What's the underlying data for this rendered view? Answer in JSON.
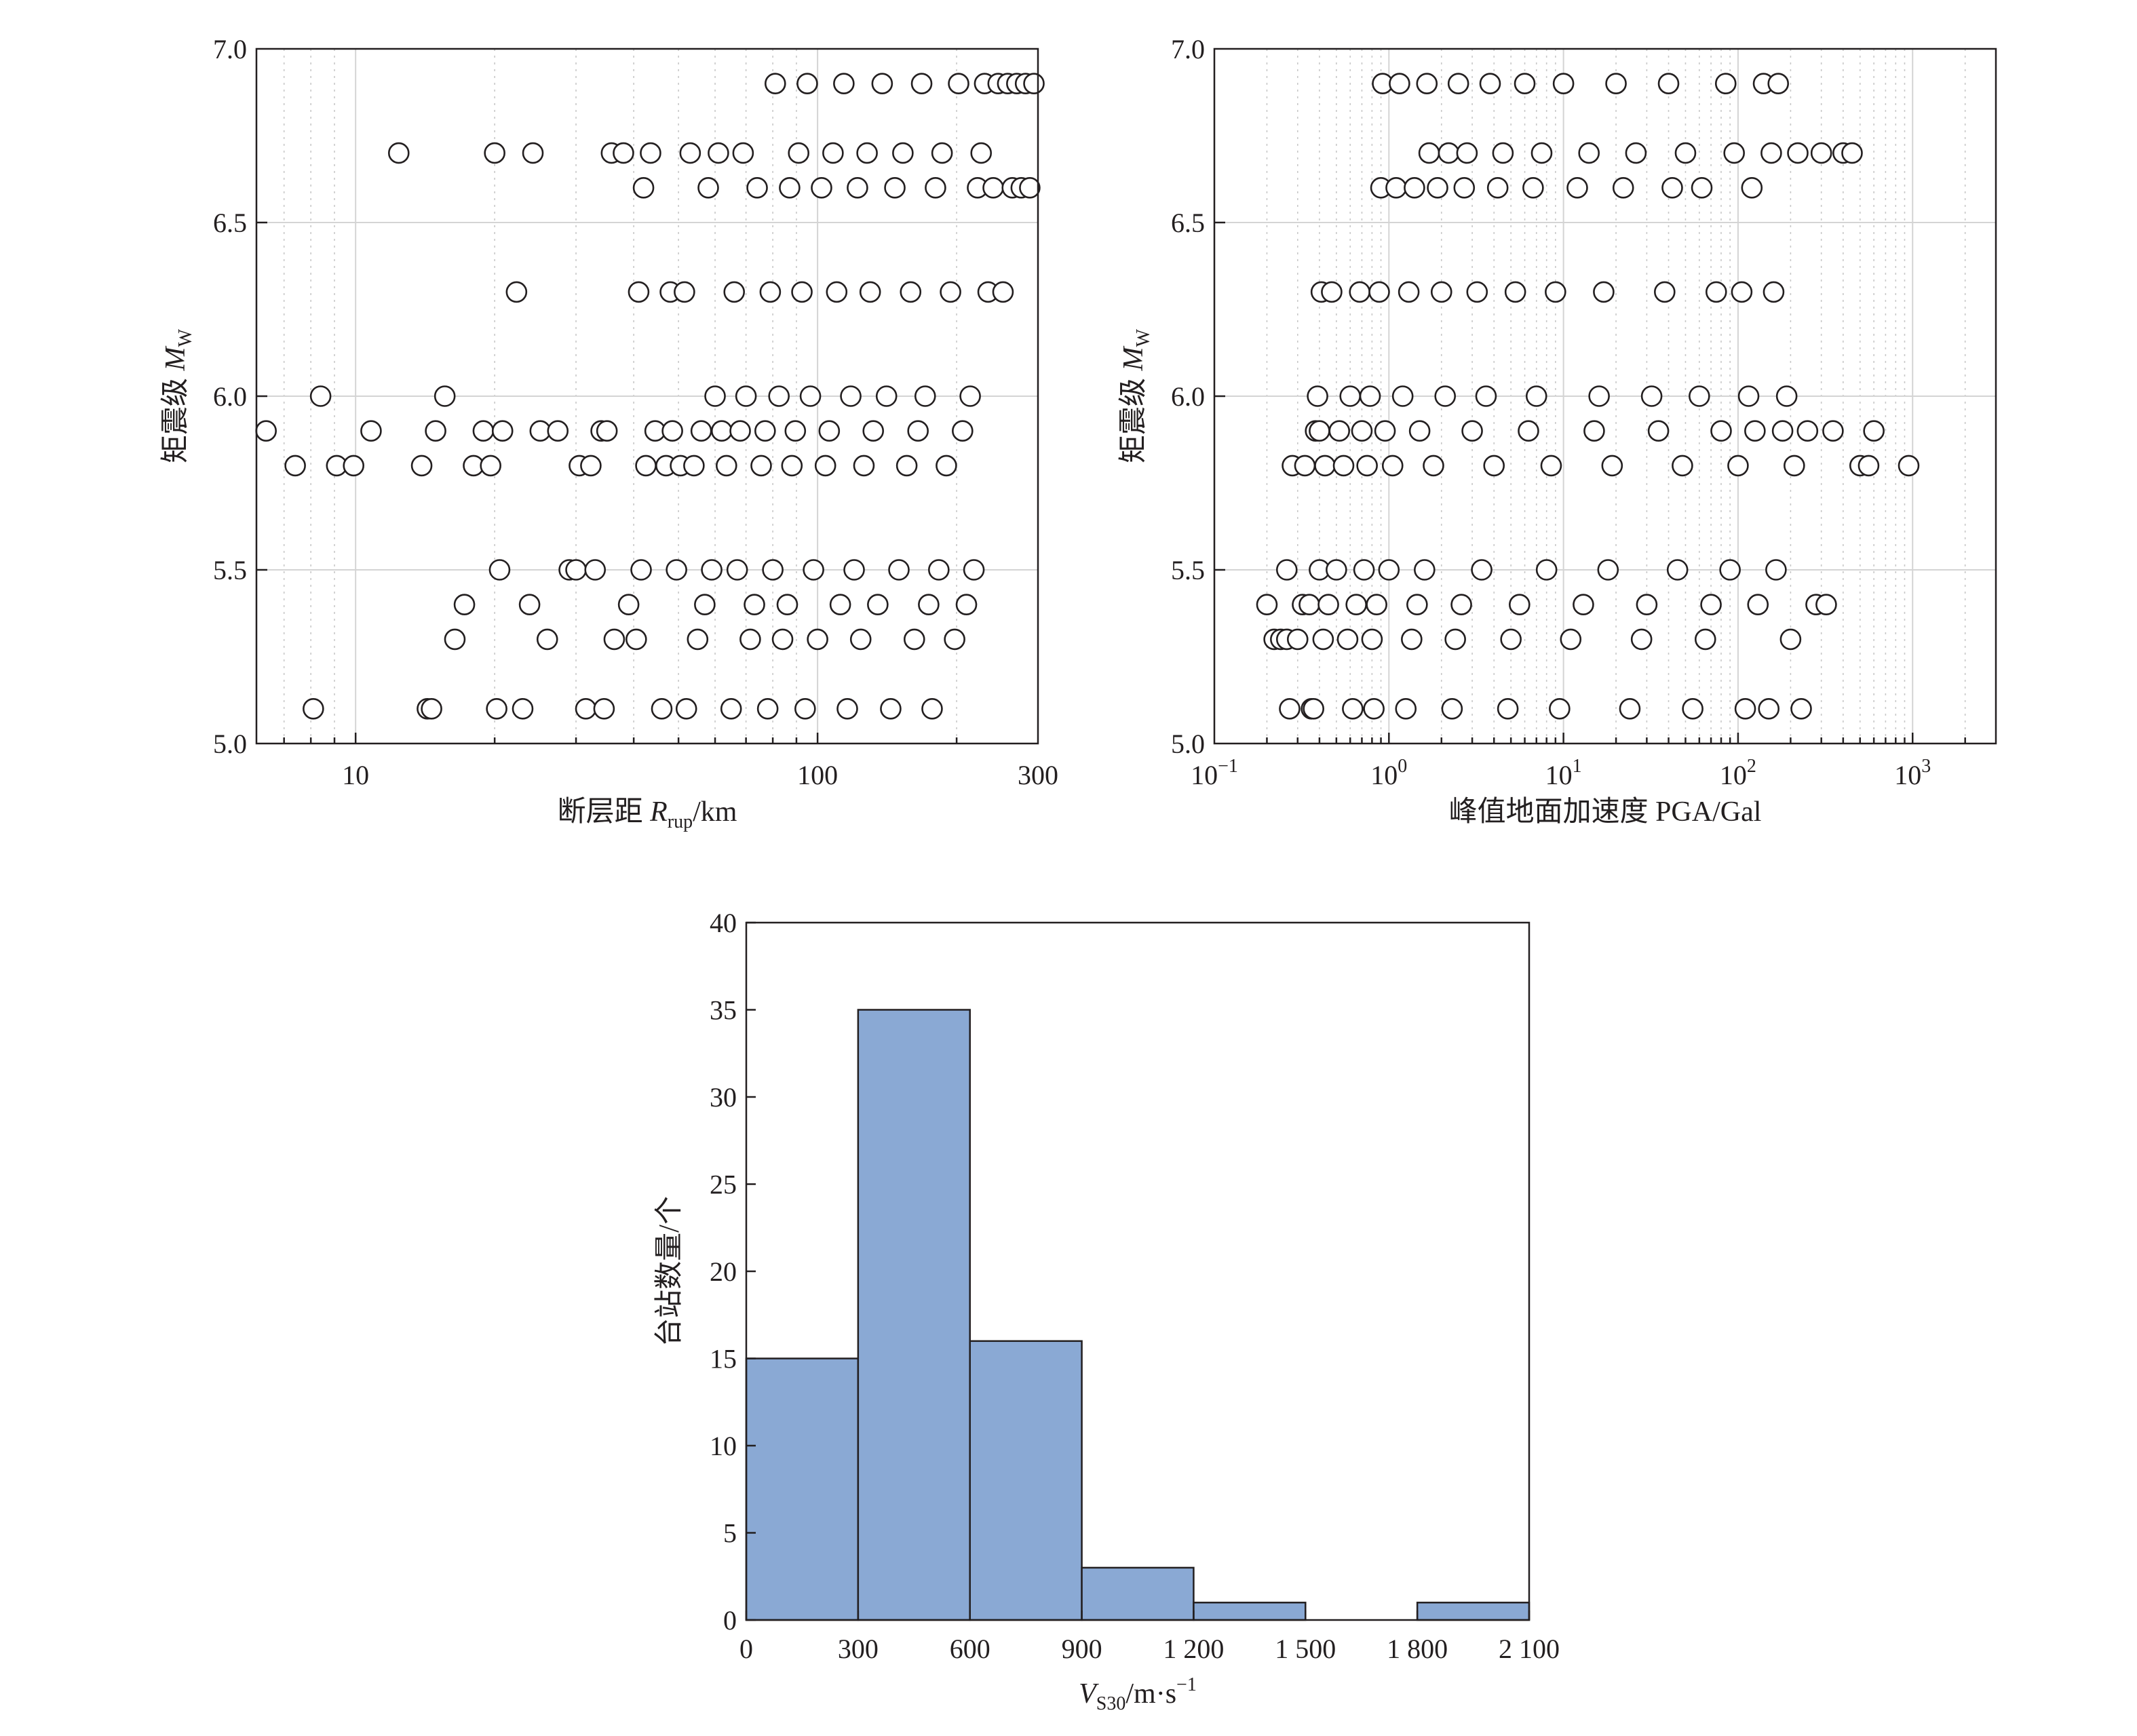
{
  "chart_data": [
    {
      "id": "mw_vs_rrup",
      "type": "scatter",
      "xscale": "log",
      "xlim": [
        6.1,
        300
      ],
      "ylim": [
        5.0,
        7.0
      ],
      "xticks": [
        {
          "value": 10,
          "label": "10"
        },
        {
          "value": 100,
          "label": "100"
        },
        {
          "value": 300,
          "label": "300"
        }
      ],
      "yticks": [
        {
          "value": 5.0,
          "label": "5.0"
        },
        {
          "value": 5.5,
          "label": "5.5"
        },
        {
          "value": 6.0,
          "label": "6.0"
        },
        {
          "value": 6.5,
          "label": "6.5"
        },
        {
          "value": 7.0,
          "label": "7.0"
        }
      ],
      "xlabel": {
        "main": "断层距 ",
        "sym": "R",
        "sub": "rup",
        "unit": "/km"
      },
      "ylabel": {
        "main": "矩震级 ",
        "sym": "M",
        "sub": "W"
      },
      "grid": true,
      "marker": "open-circle",
      "points": [
        [
          6.4,
          5.9
        ],
        [
          7.4,
          5.8
        ],
        [
          8.1,
          5.1
        ],
        [
          8.4,
          6.0
        ],
        [
          9.1,
          5.8
        ],
        [
          9.9,
          5.8
        ],
        [
          10.8,
          5.9
        ],
        [
          12.4,
          6.7
        ],
        [
          13.9,
          5.8
        ],
        [
          14.3,
          5.1
        ],
        [
          14.6,
          5.1
        ],
        [
          14.9,
          5.9
        ],
        [
          15.6,
          6.0
        ],
        [
          16.4,
          5.3
        ],
        [
          17.2,
          5.4
        ],
        [
          18.0,
          5.8
        ],
        [
          18.9,
          5.9
        ],
        [
          19.6,
          5.8
        ],
        [
          20.0,
          6.7
        ],
        [
          20.2,
          5.1
        ],
        [
          20.5,
          5.5
        ],
        [
          20.8,
          5.9
        ],
        [
          22.3,
          6.3
        ],
        [
          23.0,
          5.1
        ],
        [
          23.8,
          5.4
        ],
        [
          24.2,
          6.7
        ],
        [
          25.1,
          5.9
        ],
        [
          26.0,
          5.3
        ],
        [
          27.4,
          5.9
        ],
        [
          29.0,
          5.5
        ],
        [
          30.0,
          5.5
        ],
        [
          30.5,
          5.8
        ],
        [
          31.5,
          5.1
        ],
        [
          32.3,
          5.8
        ],
        [
          33.0,
          5.5
        ],
        [
          34.0,
          5.9
        ],
        [
          34.5,
          5.1
        ],
        [
          35.0,
          5.9
        ],
        [
          35.8,
          6.7
        ],
        [
          36.3,
          5.3
        ],
        [
          38.0,
          6.7
        ],
        [
          39.0,
          5.4
        ],
        [
          40.5,
          5.3
        ],
        [
          41.0,
          6.3
        ],
        [
          41.5,
          5.5
        ],
        [
          42.0,
          6.6
        ],
        [
          42.5,
          5.8
        ],
        [
          43.5,
          6.7
        ],
        [
          44.5,
          5.9
        ],
        [
          46.0,
          5.1
        ],
        [
          47.0,
          5.8
        ],
        [
          48.0,
          6.3
        ],
        [
          48.5,
          5.9
        ],
        [
          49.5,
          5.5
        ],
        [
          50.5,
          5.8
        ],
        [
          51.5,
          6.3
        ],
        [
          52.0,
          5.1
        ],
        [
          53.0,
          6.7
        ],
        [
          54.0,
          5.8
        ],
        [
          55.0,
          5.3
        ],
        [
          56.0,
          5.9
        ],
        [
          57.0,
          5.4
        ],
        [
          58.0,
          6.6
        ],
        [
          59.0,
          5.5
        ],
        [
          60.0,
          6.0
        ],
        [
          61.0,
          6.7
        ],
        [
          62.0,
          5.9
        ],
        [
          63.5,
          5.8
        ],
        [
          65.0,
          5.1
        ],
        [
          66.0,
          6.3
        ],
        [
          67.0,
          5.5
        ],
        [
          68.0,
          5.9
        ],
        [
          69.0,
          6.7
        ],
        [
          70.0,
          6.0
        ],
        [
          71.5,
          5.3
        ],
        [
          73.0,
          5.4
        ],
        [
          74.0,
          6.6
        ],
        [
          75.5,
          5.8
        ],
        [
          77.0,
          5.9
        ],
        [
          78.0,
          5.1
        ],
        [
          79.0,
          6.3
        ],
        [
          80.0,
          5.5
        ],
        [
          81.0,
          6.9
        ],
        [
          82.5,
          6.0
        ],
        [
          84.0,
          5.3
        ],
        [
          86.0,
          5.4
        ],
        [
          87.0,
          6.6
        ],
        [
          88.0,
          5.8
        ],
        [
          89.5,
          5.9
        ],
        [
          91.0,
          6.7
        ],
        [
          92.5,
          6.3
        ],
        [
          94.0,
          5.1
        ],
        [
          95.0,
          6.9
        ],
        [
          96.5,
          6.0
        ],
        [
          98.0,
          5.5
        ],
        [
          100,
          5.3
        ],
        [
          102,
          6.6
        ],
        [
          104,
          5.8
        ],
        [
          106,
          5.9
        ],
        [
          108,
          6.7
        ],
        [
          110,
          6.3
        ],
        [
          112,
          5.4
        ],
        [
          114,
          6.9
        ],
        [
          116,
          5.1
        ],
        [
          118,
          6.0
        ],
        [
          120,
          5.5
        ],
        [
          122,
          6.6
        ],
        [
          124,
          5.3
        ],
        [
          126,
          5.8
        ],
        [
          128,
          6.7
        ],
        [
          130,
          6.3
        ],
        [
          132,
          5.9
        ],
        [
          135,
          5.4
        ],
        [
          138,
          6.9
        ],
        [
          141,
          6.0
        ],
        [
          144,
          5.1
        ],
        [
          147,
          6.6
        ],
        [
          150,
          5.5
        ],
        [
          153,
          6.7
        ],
        [
          156,
          5.8
        ],
        [
          159,
          6.3
        ],
        [
          162,
          5.3
        ],
        [
          165,
          5.9
        ],
        [
          168,
          6.9
        ],
        [
          171,
          6.0
        ],
        [
          174,
          5.4
        ],
        [
          177,
          5.1
        ],
        [
          180,
          6.6
        ],
        [
          183,
          5.5
        ],
        [
          186,
          6.7
        ],
        [
          190,
          5.8
        ],
        [
          194,
          6.3
        ],
        [
          198,
          5.3
        ],
        [
          202,
          6.9
        ],
        [
          206,
          5.9
        ],
        [
          210,
          5.4
        ],
        [
          214,
          6.0
        ],
        [
          218,
          5.5
        ],
        [
          222,
          6.6
        ],
        [
          226,
          6.7
        ],
        [
          230,
          6.9
        ],
        [
          234,
          6.3
        ],
        [
          240,
          6.6
        ],
        [
          246,
          6.9
        ],
        [
          252,
          6.3
        ],
        [
          258,
          6.9
        ],
        [
          264,
          6.6
        ],
        [
          270,
          6.9
        ],
        [
          276,
          6.6
        ],
        [
          282,
          6.9
        ],
        [
          288,
          6.6
        ],
        [
          294,
          6.9
        ]
      ]
    },
    {
      "id": "mw_vs_pga",
      "type": "scatter",
      "xscale": "log",
      "xlim": [
        0.1,
        3000
      ],
      "ylim": [
        5.0,
        7.0
      ],
      "xticks": [
        {
          "value": 0.1,
          "base": "10",
          "exp": "−1"
        },
        {
          "value": 1,
          "base": "10",
          "exp": "0"
        },
        {
          "value": 10,
          "base": "10",
          "exp": "1"
        },
        {
          "value": 100,
          "base": "10",
          "exp": "2"
        },
        {
          "value": 1000,
          "base": "10",
          "exp": "3"
        }
      ],
      "yticks": [
        {
          "value": 5.0,
          "label": "5.0"
        },
        {
          "value": 5.5,
          "label": "5.5"
        },
        {
          "value": 6.0,
          "label": "6.0"
        },
        {
          "value": 6.5,
          "label": "6.5"
        },
        {
          "value": 7.0,
          "label": "7.0"
        }
      ],
      "xlabel": {
        "main": "峰值地面加速度 PGA/Gal"
      },
      "ylabel": {
        "main": "矩震级 ",
        "sym": "M",
        "sub": "W"
      },
      "grid": true,
      "marker": "open-circle",
      "points": [
        [
          0.2,
          5.4
        ],
        [
          0.22,
          5.3
        ],
        [
          0.24,
          5.3
        ],
        [
          0.26,
          5.3
        ],
        [
          0.26,
          5.5
        ],
        [
          0.27,
          5.1
        ],
        [
          0.28,
          5.8
        ],
        [
          0.3,
          5.3
        ],
        [
          0.32,
          5.4
        ],
        [
          0.33,
          5.8
        ],
        [
          0.35,
          5.4
        ],
        [
          0.36,
          5.1
        ],
        [
          0.37,
          5.1
        ],
        [
          0.38,
          5.9
        ],
        [
          0.39,
          6.0
        ],
        [
          0.4,
          5.5
        ],
        [
          0.4,
          5.9
        ],
        [
          0.41,
          6.3
        ],
        [
          0.42,
          5.3
        ],
        [
          0.43,
          5.8
        ],
        [
          0.45,
          5.4
        ],
        [
          0.47,
          6.3
        ],
        [
          0.5,
          5.5
        ],
        [
          0.52,
          5.9
        ],
        [
          0.55,
          5.8
        ],
        [
          0.58,
          5.3
        ],
        [
          0.6,
          6.0
        ],
        [
          0.62,
          5.1
        ],
        [
          0.65,
          5.4
        ],
        [
          0.68,
          6.3
        ],
        [
          0.7,
          5.9
        ],
        [
          0.72,
          5.5
        ],
        [
          0.75,
          5.8
        ],
        [
          0.78,
          6.0
        ],
        [
          0.8,
          5.3
        ],
        [
          0.82,
          5.1
        ],
        [
          0.85,
          5.4
        ],
        [
          0.88,
          6.3
        ],
        [
          0.9,
          6.6
        ],
        [
          0.92,
          6.9
        ],
        [
          0.95,
          5.9
        ],
        [
          1.0,
          5.5
        ],
        [
          1.05,
          5.8
        ],
        [
          1.1,
          6.6
        ],
        [
          1.15,
          6.9
        ],
        [
          1.2,
          6.0
        ],
        [
          1.25,
          5.1
        ],
        [
          1.3,
          6.3
        ],
        [
          1.35,
          5.3
        ],
        [
          1.4,
          6.6
        ],
        [
          1.45,
          5.4
        ],
        [
          1.5,
          5.9
        ],
        [
          1.6,
          5.5
        ],
        [
          1.65,
          6.9
        ],
        [
          1.7,
          6.7
        ],
        [
          1.8,
          5.8
        ],
        [
          1.9,
          6.6
        ],
        [
          2.0,
          6.3
        ],
        [
          2.1,
          6.0
        ],
        [
          2.2,
          6.7
        ],
        [
          2.3,
          5.1
        ],
        [
          2.4,
          5.3
        ],
        [
          2.5,
          6.9
        ],
        [
          2.6,
          5.4
        ],
        [
          2.7,
          6.6
        ],
        [
          2.8,
          6.7
        ],
        [
          3.0,
          5.9
        ],
        [
          3.2,
          6.3
        ],
        [
          3.4,
          5.5
        ],
        [
          3.6,
          6.0
        ],
        [
          3.8,
          6.9
        ],
        [
          4.0,
          5.8
        ],
        [
          4.2,
          6.6
        ],
        [
          4.5,
          6.7
        ],
        [
          4.8,
          5.1
        ],
        [
          5.0,
          5.3
        ],
        [
          5.3,
          6.3
        ],
        [
          5.6,
          5.4
        ],
        [
          6.0,
          6.9
        ],
        [
          6.3,
          5.9
        ],
        [
          6.7,
          6.6
        ],
        [
          7.0,
          6.0
        ],
        [
          7.5,
          6.7
        ],
        [
          8.0,
          5.5
        ],
        [
          8.5,
          5.8
        ],
        [
          9.0,
          6.3
        ],
        [
          9.5,
          5.1
        ],
        [
          10,
          6.9
        ],
        [
          11,
          5.3
        ],
        [
          12,
          6.6
        ],
        [
          13,
          5.4
        ],
        [
          14,
          6.7
        ],
        [
          15,
          5.9
        ],
        [
          16,
          6.0
        ],
        [
          17,
          6.3
        ],
        [
          18,
          5.5
        ],
        [
          19,
          5.8
        ],
        [
          20,
          6.9
        ],
        [
          22,
          6.6
        ],
        [
          24,
          5.1
        ],
        [
          26,
          6.7
        ],
        [
          28,
          5.3
        ],
        [
          30,
          5.4
        ],
        [
          32,
          6.0
        ],
        [
          35,
          5.9
        ],
        [
          38,
          6.3
        ],
        [
          40,
          6.9
        ],
        [
          42,
          6.6
        ],
        [
          45,
          5.5
        ],
        [
          48,
          5.8
        ],
        [
          50,
          6.7
        ],
        [
          55,
          5.1
        ],
        [
          60,
          6.0
        ],
        [
          62,
          6.6
        ],
        [
          65,
          5.3
        ],
        [
          70,
          5.4
        ],
        [
          75,
          6.3
        ],
        [
          80,
          5.9
        ],
        [
          85,
          6.9
        ],
        [
          90,
          5.5
        ],
        [
          95,
          6.7
        ],
        [
          100,
          5.8
        ],
        [
          105,
          6.3
        ],
        [
          110,
          5.1
        ],
        [
          115,
          6.0
        ],
        [
          120,
          6.6
        ],
        [
          125,
          5.9
        ],
        [
          130,
          5.4
        ],
        [
          140,
          6.9
        ],
        [
          150,
          5.1
        ],
        [
          155,
          6.7
        ],
        [
          160,
          6.3
        ],
        [
          165,
          5.5
        ],
        [
          170,
          6.9
        ],
        [
          180,
          5.9
        ],
        [
          190,
          6.0
        ],
        [
          200,
          5.3
        ],
        [
          210,
          5.8
        ],
        [
          220,
          6.7
        ],
        [
          230,
          5.1
        ],
        [
          250,
          5.9
        ],
        [
          280,
          5.4
        ],
        [
          300,
          6.7
        ],
        [
          320,
          5.4
        ],
        [
          350,
          5.9
        ],
        [
          400,
          6.7
        ],
        [
          450,
          6.7
        ],
        [
          500,
          5.8
        ],
        [
          560,
          5.8
        ],
        [
          600,
          5.9
        ],
        [
          950,
          5.8
        ]
      ]
    },
    {
      "id": "vs30_histogram",
      "type": "bar",
      "bins": [
        [
          0,
          300
        ],
        [
          300,
          600
        ],
        [
          600,
          900
        ],
        [
          900,
          1200
        ],
        [
          1200,
          1500
        ],
        [
          1500,
          1800
        ],
        [
          1800,
          2100
        ]
      ],
      "values": [
        15,
        35,
        16,
        3,
        1,
        0,
        1
      ],
      "xlim": [
        0,
        2100
      ],
      "ylim": [
        0,
        40
      ],
      "xticks": [
        {
          "value": 0,
          "label": "0"
        },
        {
          "value": 300,
          "label": "300"
        },
        {
          "value": 600,
          "label": "600"
        },
        {
          "value": 900,
          "label": "900"
        },
        {
          "value": 1200,
          "label": "1 200"
        },
        {
          "value": 1500,
          "label": "1 500"
        },
        {
          "value": 1800,
          "label": "1 800"
        },
        {
          "value": 2100,
          "label": "2 100"
        }
      ],
      "yticks": [
        {
          "value": 0,
          "label": "0"
        },
        {
          "value": 5,
          "label": "5"
        },
        {
          "value": 10,
          "label": "10"
        },
        {
          "value": 15,
          "label": "15"
        },
        {
          "value": 20,
          "label": "20"
        },
        {
          "value": 25,
          "label": "25"
        },
        {
          "value": 30,
          "label": "30"
        },
        {
          "value": 35,
          "label": "35"
        },
        {
          "value": 40,
          "label": "40"
        }
      ],
      "xlabel": {
        "sym": "V",
        "sub": "S30",
        "unit": "/m·s",
        "sup": "−1"
      },
      "ylabel": {
        "main": "台站数量/个"
      },
      "bar_color": "#8aa9d4",
      "edge_color": "#231f20",
      "grid": false
    }
  ]
}
